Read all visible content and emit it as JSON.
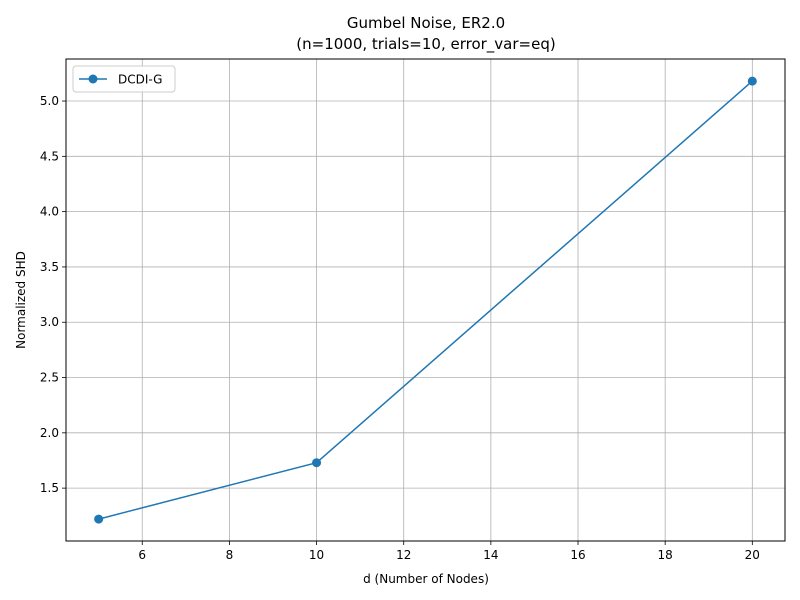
{
  "chart_data": {
    "type": "line",
    "title_line1": "Gumbel Noise, ER2.0",
    "title_line2": "(n=1000, trials=10, error_var=eq)",
    "xlabel": "d (Number of Nodes)",
    "ylabel": "Normalized SHD",
    "xlim": [
      4.25,
      20.75
    ],
    "ylim": [
      1.022,
      5.38
    ],
    "x_ticks": [
      6,
      8,
      10,
      12,
      14,
      16,
      18,
      20
    ],
    "y_ticks": [
      1.5,
      2.0,
      2.5,
      3.0,
      3.5,
      4.0,
      4.5,
      5.0
    ],
    "grid": true,
    "legend_position": "upper-left",
    "series": [
      {
        "name": "DCDI-G",
        "color": "#1f77b4",
        "marker": "circle",
        "x": [
          5,
          10,
          20
        ],
        "y": [
          1.22,
          1.73,
          5.18
        ]
      }
    ]
  }
}
